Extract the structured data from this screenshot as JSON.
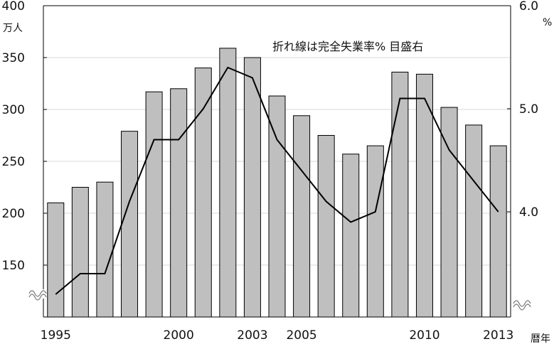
{
  "chart_data": {
    "type": "bar",
    "categories": [
      "1995",
      "1996",
      "1997",
      "1998",
      "1999",
      "2000",
      "2001",
      "2002",
      "2003",
      "2004",
      "2005",
      "2006",
      "2007",
      "2008",
      "2009",
      "2010",
      "2011",
      "2012",
      "2013"
    ],
    "series": [
      {
        "type": "bar",
        "axis": "left",
        "values": [
          210,
          225,
          230,
          279,
          317,
          320,
          340,
          359,
          350,
          313,
          294,
          275,
          257,
          265,
          336,
          334,
          302,
          285,
          265
        ]
      },
      {
        "type": "line",
        "axis": "right",
        "values": [
          3.2,
          3.4,
          3.4,
          4.1,
          4.7,
          4.7,
          5.0,
          5.4,
          5.3,
          4.7,
          4.4,
          4.1,
          3.9,
          4.0,
          5.1,
          5.1,
          4.6,
          4.3,
          4.0
        ]
      }
    ],
    "annotation": "折れ線は完全失業率% 目盛右",
    "left_axis": {
      "unit": "万人",
      "ticks": [
        "400",
        "350",
        "300",
        "250",
        "200",
        "150"
      ],
      "ylim": [
        100,
        400
      ],
      "broken": true
    },
    "right_axis": {
      "unit": "%",
      "ticks": [
        "6.0",
        "5.0",
        "4.0"
      ],
      "ylim": [
        3.0,
        6.0
      ],
      "broken": true
    },
    "x_axis": {
      "unit": "暦年",
      "tick_labels": [
        {
          "index": 0,
          "label": "1995"
        },
        {
          "index": 5,
          "label": "2000"
        },
        {
          "index": 8,
          "label": "2003"
        },
        {
          "index": 10,
          "label": "2005"
        },
        {
          "index": 15,
          "label": "2010"
        },
        {
          "index": 18,
          "label": "2013"
        }
      ]
    },
    "grid": true,
    "colors": {
      "bar_fill": "#bfbfbf",
      "bar_stroke": "#000000",
      "line": "#000000",
      "grid": "#d9d9d9"
    }
  }
}
